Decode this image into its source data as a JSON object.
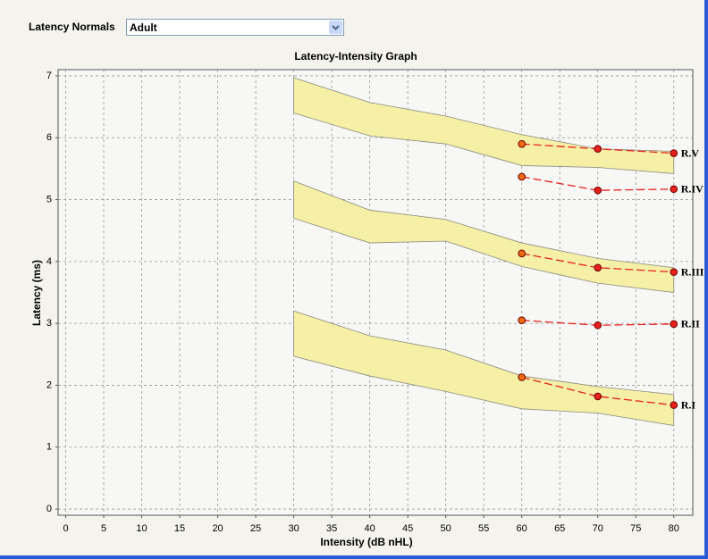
{
  "controls": {
    "label": "Latency Normals",
    "dropdown_value": "Adult"
  },
  "chart_data": {
    "type": "line",
    "title": "Latency-Intensity Graph",
    "x_label": "Intensity (dB nHL)",
    "y_label": "Latency (ms)",
    "xlim": [
      -1,
      82.5
    ],
    "ylim": [
      -0.1,
      7.1
    ],
    "xticks": [
      0,
      5,
      10,
      15,
      20,
      25,
      30,
      35,
      40,
      45,
      50,
      55,
      60,
      65,
      70,
      75,
      80
    ],
    "yticks": [
      0,
      1,
      2,
      3,
      4,
      5,
      6,
      7
    ],
    "grid": true,
    "x": [
      60,
      70,
      80
    ],
    "series": [
      {
        "name": "R.V",
        "color": "#e8201c",
        "values": [
          5.9,
          5.82,
          5.75
        ]
      },
      {
        "name": "R.IV",
        "color": "#e8201c",
        "values": [
          5.37,
          5.15,
          5.17
        ]
      },
      {
        "name": "R.III",
        "color": "#e8201c",
        "values": [
          4.13,
          3.9,
          3.83
        ]
      },
      {
        "name": "R.II",
        "color": "#e8201c",
        "values": [
          3.05,
          2.97,
          2.99
        ]
      },
      {
        "name": "R.I",
        "color": "#e8201c",
        "values": [
          2.13,
          1.82,
          1.68
        ]
      }
    ],
    "bands": {
      "color": "#f5f0a6",
      "x": [
        30,
        40,
        50,
        60,
        70,
        80
      ],
      "ranges": [
        {
          "upper": [
            6.97,
            6.57,
            6.35,
            6.05,
            5.82,
            5.78
          ],
          "lower": [
            6.4,
            6.03,
            5.9,
            5.55,
            5.52,
            5.42
          ]
        },
        {
          "upper": [
            5.3,
            4.83,
            4.68,
            4.3,
            4.05,
            3.9
          ],
          "lower": [
            4.7,
            4.3,
            4.33,
            3.92,
            3.65,
            3.5
          ]
        },
        {
          "upper": [
            3.2,
            2.8,
            2.57,
            2.15,
            1.98,
            1.85
          ],
          "lower": [
            2.47,
            2.15,
            1.9,
            1.62,
            1.55,
            1.35
          ]
        }
      ]
    }
  }
}
